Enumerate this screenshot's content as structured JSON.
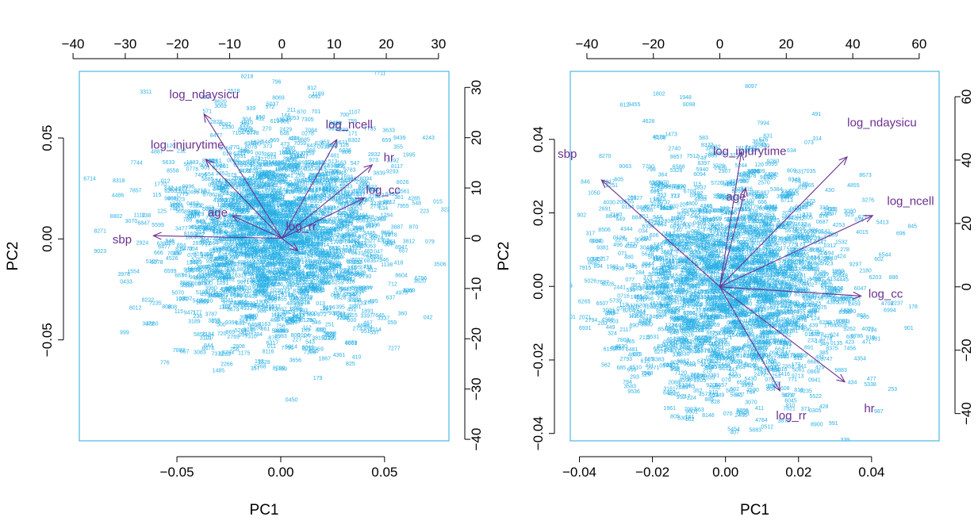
{
  "colors": {
    "frame": "#29a8df",
    "points": "#29b0e6",
    "arrows": "#6b2f8f",
    "labels": "#6b2f8f",
    "text": "#000000"
  },
  "chart_data": [
    {
      "type": "biplot",
      "xlabel": "PC1",
      "ylabel": "PC2",
      "xlim": [
        -0.097,
        0.081
      ],
      "ylim": [
        -0.1,
        0.083
      ],
      "xticks": [
        -0.05,
        0.0,
        0.05
      ],
      "xtick_labels": [
        "−0.05",
        "0.00",
        "0.05"
      ],
      "yticks": [
        -0.05,
        0.0,
        0.05
      ],
      "ytick_labels": [
        "−0.05",
        "0.00",
        "0.05"
      ],
      "top_lim": [
        -38.8,
        32.0
      ],
      "top_ticks": [
        -40,
        -30,
        -20,
        -10,
        0,
        10,
        20,
        30
      ],
      "top_tick_labels": [
        "−40",
        "−30",
        "−20",
        "−10",
        "0",
        "10",
        "20",
        "30"
      ],
      "right_lim": [
        -40.3,
        33.2
      ],
      "right_ticks": [
        -40,
        -30,
        -20,
        -10,
        0,
        10,
        20,
        30
      ],
      "right_tick_labels": [
        "−40",
        "−30",
        "−20",
        "−10",
        "0",
        "10",
        "20",
        "30"
      ],
      "arrows": [
        {
          "name": "log_ndaysicu",
          "x": -14.9,
          "y": 24.7,
          "lx": -14.9,
          "ly": 28.6
        },
        {
          "name": "log_injurytime",
          "x": -14.6,
          "y": 15.7,
          "lx": -18.1,
          "ly": 18.6
        },
        {
          "name": "age",
          "x": -9.5,
          "y": 4.5,
          "lx": -12.3,
          "ly": 5.1
        },
        {
          "name": "sbp",
          "x": -24.6,
          "y": 0.5,
          "lx": -30.6,
          "ly": -0.2
        },
        {
          "name": "log_ncell",
          "x": 10.5,
          "y": 19.6,
          "lx": 12.9,
          "ly": 22.6
        },
        {
          "name": "hr",
          "x": 17.3,
          "y": 14.6,
          "lx": 20.5,
          "ly": 16.1
        },
        {
          "name": "log_cc",
          "x": 15.8,
          "y": 8.0,
          "lx": 19.4,
          "ly": 9.6
        },
        {
          "name": "log_rr",
          "x": 3.1,
          "y": -2.5,
          "lx": 3.7,
          "ly": 2.4
        }
      ],
      "labeled_points": [
        {
          "id": "3311",
          "x": -0.065,
          "y": 0.072
        },
        {
          "id": "796",
          "x": -0.002,
          "y": 0.077
        },
        {
          "id": "812",
          "x": 0.015,
          "y": 0.074
        },
        {
          "id": "1189",
          "x": 0.018,
          "y": 0.071
        },
        {
          "id": "8620",
          "x": -0.029,
          "y": 0.067
        },
        {
          "id": "3069",
          "x": -0.029,
          "y": 0.065
        },
        {
          "id": "5037",
          "x": -0.004,
          "y": 0.066
        },
        {
          "id": "870",
          "x": 0.01,
          "y": 0.062
        },
        {
          "id": "6053",
          "x": 0.006,
          "y": 0.059
        },
        {
          "id": "2820",
          "x": -0.031,
          "y": 0.057
        },
        {
          "id": "3633",
          "x": 0.052,
          "y": 0.053
        },
        {
          "id": "659",
          "x": 0.051,
          "y": 0.048
        },
        {
          "id": "2832",
          "x": 0.045,
          "y": 0.041
        },
        {
          "id": "8117",
          "x": 0.056,
          "y": 0.035
        },
        {
          "id": "2192",
          "x": 0.054,
          "y": 0.038
        },
        {
          "id": "6714",
          "x": -0.092,
          "y": 0.029
        },
        {
          "id": "8318",
          "x": -0.078,
          "y": 0.028
        },
        {
          "id": "5633",
          "x": -0.054,
          "y": 0.037
        },
        {
          "id": "8558",
          "x": -0.052,
          "y": 0.033
        },
        {
          "id": "6263",
          "x": -0.053,
          "y": 0.023
        },
        {
          "id": "1112",
          "x": -0.068,
          "y": 0.011
        },
        {
          "id": "3070",
          "x": -0.072,
          "y": 0.008
        },
        {
          "id": "6847",
          "x": -0.066,
          "y": 0.007
        },
        {
          "id": "8271",
          "x": -0.087,
          "y": 0.003
        },
        {
          "id": "9023",
          "x": -0.087,
          "y": -0.007
        },
        {
          "id": "5107",
          "x": -0.062,
          "y": -0.012
        },
        {
          "id": "1554",
          "x": -0.071,
          "y": -0.017
        },
        {
          "id": "8012",
          "x": -0.07,
          "y": -0.035
        },
        {
          "id": "8222",
          "x": -0.064,
          "y": -0.031
        },
        {
          "id": "7882",
          "x": -0.049,
          "y": -0.056
        },
        {
          "id": "3083",
          "x": -0.039,
          "y": -0.057
        },
        {
          "id": "8474",
          "x": -0.035,
          "y": -0.055
        },
        {
          "id": "8289",
          "x": -0.027,
          "y": -0.058
        },
        {
          "id": "1485",
          "x": -0.03,
          "y": -0.066
        },
        {
          "id": "2184",
          "x": -0.035,
          "y": -0.048
        },
        {
          "id": "1528",
          "x": -0.008,
          "y": -0.062
        },
        {
          "id": "2768",
          "x": -0.01,
          "y": -0.064
        },
        {
          "id": "3656",
          "x": 0.007,
          "y": -0.061
        },
        {
          "id": "2011",
          "x": 0.013,
          "y": -0.055
        },
        {
          "id": "7306",
          "x": 0.014,
          "y": -0.057
        },
        {
          "id": "3815",
          "x": 0.018,
          "y": -0.05
        },
        {
          "id": "8767",
          "x": -0.003,
          "y": -0.05
        },
        {
          "id": "832",
          "x": 0.019,
          "y": -0.046
        },
        {
          "id": "2282",
          "x": 0.024,
          "y": -0.048
        },
        {
          "id": "8947",
          "x": 0.058,
          "y": -0.005
        },
        {
          "id": "3887",
          "x": 0.056,
          "y": 0.005
        },
        {
          "id": "870b",
          "text": "870",
          "x": 0.064,
          "y": 0.005
        },
        {
          "id": "4934",
          "x": 0.041,
          "y": -0.025
        },
        {
          "id": "3032",
          "x": 0.035,
          "y": -0.031
        },
        {
          "id": "2538",
          "x": 0.03,
          "y": -0.04
        },
        {
          "id": "1294",
          "x": 0.051,
          "y": 0.011
        },
        {
          "id": "3494",
          "x": 0.039,
          "y": 0.011
        },
        {
          "id": "6094",
          "x": 0.041,
          "y": 0.029
        },
        {
          "id": "6036",
          "x": 0.031,
          "y": 0.043
        }
      ],
      "cloud": {
        "cx": 0.0,
        "cy": 0.0,
        "rx": 0.045,
        "ry": 0.045,
        "n": 1700,
        "seed": 11
      }
    },
    {
      "type": "biplot",
      "xlabel": "PC1",
      "ylabel": "PC2",
      "xlim": [
        -0.0425,
        0.0585
      ],
      "ylim": [
        -0.042,
        0.0585
      ],
      "xticks": [
        -0.04,
        -0.02,
        0.0,
        0.02,
        0.04
      ],
      "xtick_labels": [
        "−0.04",
        "−0.02",
        "0.00",
        "0.02",
        "0.04"
      ],
      "yticks": [
        -0.04,
        -0.02,
        0.0,
        0.02,
        0.04
      ],
      "ytick_labels": [
        "−0.04",
        "−0.02",
        "0.00",
        "0.02",
        "0.04"
      ],
      "top_lim": [
        -45.0,
        66.0
      ],
      "top_ticks": [
        -40,
        -20,
        0,
        20,
        40,
        60
      ],
      "top_tick_labels": [
        "−40",
        "−20",
        "0",
        "20",
        "40",
        "60"
      ],
      "right_lim": [
        -48.6,
        68.0
      ],
      "right_ticks": [
        -40,
        -20,
        0,
        20,
        40,
        60
      ],
      "right_tick_labels": [
        "−40",
        "−20",
        "0",
        "20",
        "40",
        "60"
      ],
      "arrows": [
        {
          "name": "sbp",
          "x": -35.6,
          "y": 33.7,
          "lx": -45.9,
          "ly": 42.0
        },
        {
          "name": "log_injurytime",
          "x": 6.5,
          "y": 42.6,
          "lx": 9.0,
          "ly": 42.9
        },
        {
          "name": "age",
          "x": 7.8,
          "y": 31.2,
          "lx": 4.9,
          "ly": 28.5
        },
        {
          "name": "log_ndaysicu",
          "x": 38.3,
          "y": 41.0,
          "lx": 48.8,
          "ly": 51.8
        },
        {
          "name": "log_ncell",
          "x": 46.0,
          "y": 22.5,
          "lx": 57.4,
          "ly": 27.1
        },
        {
          "name": "log_cc",
          "x": 42.5,
          "y": -2.9,
          "lx": 49.9,
          "ly": -2.2
        },
        {
          "name": "hr",
          "x": 37.6,
          "y": -30.0,
          "lx": 45.0,
          "ly": -38.4
        },
        {
          "name": "log_rr",
          "x": 18.1,
          "y": -32.8,
          "lx": 21.5,
          "ly": -40.6
        }
      ],
      "labeled_points": [
        {
          "id": "8097",
          "x": 0.007,
          "y": 0.054
        },
        {
          "id": "1948",
          "x": -0.011,
          "y": 0.051
        },
        {
          "id": "8098",
          "x": -0.01,
          "y": 0.049
        },
        {
          "id": "9455",
          "x": -0.025,
          "y": 0.049
        },
        {
          "id": "5168",
          "x": -0.018,
          "y": 0.04
        },
        {
          "id": "583",
          "x": -0.006,
          "y": 0.04
        },
        {
          "id": "8372",
          "x": -0.005,
          "y": 0.038
        },
        {
          "id": "3618",
          "x": 0.009,
          "y": 0.039
        },
        {
          "id": "8270",
          "x": -0.033,
          "y": 0.035
        },
        {
          "id": "2740",
          "x": -0.014,
          "y": 0.037
        },
        {
          "id": "7512",
          "x": -0.009,
          "y": 0.035
        },
        {
          "id": "1050",
          "x": -0.036,
          "y": 0.025
        },
        {
          "id": "2217",
          "x": -0.032,
          "y": 0.028
        },
        {
          "id": "7180",
          "x": -0.03,
          "y": 0.019
        },
        {
          "id": "317",
          "x": -0.037,
          "y": 0.014
        },
        {
          "id": "8842",
          "x": -0.036,
          "y": 0.006
        },
        {
          "id": "5457",
          "x": -0.035,
          "y": 0.007
        },
        {
          "id": "5026",
          "x": -0.037,
          "y": 0.001
        },
        {
          "id": "3021",
          "x": -0.032,
          "y": -0.007
        },
        {
          "id": "7603",
          "x": -0.031,
          "y": -0.01
        },
        {
          "id": "7803",
          "x": -0.028,
          "y": -0.015
        },
        {
          "id": "4800",
          "x": -0.025,
          "y": -0.019
        },
        {
          "id": "8596",
          "x": -0.011,
          "y": -0.026
        },
        {
          "id": "2685",
          "x": -0.012,
          "y": -0.028
        },
        {
          "id": "2205",
          "x": -0.007,
          "y": -0.026
        },
        {
          "id": "7852",
          "x": -0.003,
          "y": -0.028
        },
        {
          "id": "5349",
          "x": -0.002,
          "y": -0.03
        },
        {
          "id": "5641",
          "x": 0.003,
          "y": -0.03
        },
        {
          "id": "3070",
          "x": 0.007,
          "y": -0.032
        },
        {
          "id": "1101",
          "x": 0.005,
          "y": -0.035
        },
        {
          "id": "3873",
          "x": 0.016,
          "y": -0.037
        },
        {
          "id": "8900",
          "x": 0.025,
          "y": -0.038
        },
        {
          "id": "5474",
          "x": 0.017,
          "y": -0.03
        },
        {
          "id": "9235",
          "x": 0.022,
          "y": -0.029
        },
        {
          "id": "4855",
          "x": 0.035,
          "y": 0.027
        },
        {
          "id": "3276",
          "x": 0.039,
          "y": 0.023
        },
        {
          "id": "3080",
          "x": 0.034,
          "y": 0.02
        },
        {
          "id": "5413",
          "x": 0.043,
          "y": 0.017
        },
        {
          "id": "696",
          "x": 0.048,
          "y": 0.014
        },
        {
          "id": "602",
          "x": 0.042,
          "y": 0.007
        },
        {
          "id": "6203",
          "x": 0.041,
          "y": 0.002
        },
        {
          "id": "886",
          "x": 0.046,
          "y": 0.002
        },
        {
          "id": "2237",
          "x": 0.047,
          "y": -0.005
        },
        {
          "id": "6994",
          "x": 0.045,
          "y": -0.007
        },
        {
          "id": "4023",
          "x": 0.039,
          "y": -0.012
        },
        {
          "id": "6786",
          "x": 0.036,
          "y": -0.014
        },
        {
          "id": "4420",
          "x": 0.033,
          "y": -0.007
        }
      ],
      "cloud": {
        "cx": 0.002,
        "cy": 0.0,
        "rx": 0.029,
        "ry": 0.028,
        "n": 1700,
        "seed": 23
      }
    }
  ]
}
